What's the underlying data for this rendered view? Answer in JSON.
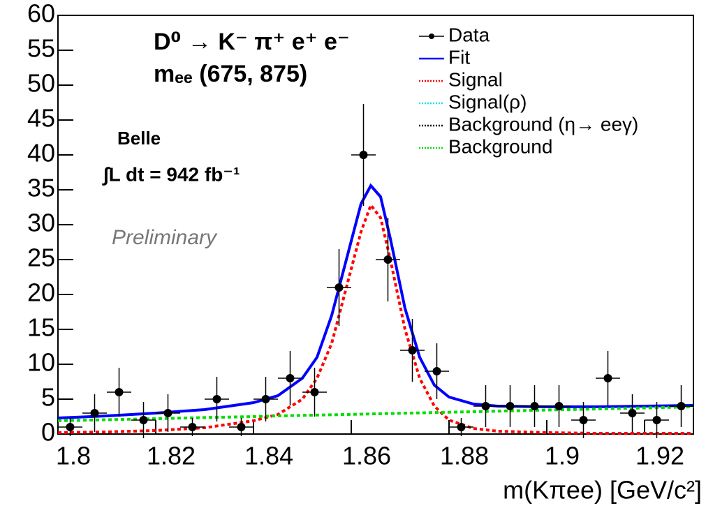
{
  "chart_data": {
    "type": "histfit",
    "xlabel": "m(Kπee) [GeV/c²]",
    "xlim": [
      1.8,
      1.93
    ],
    "ylim": [
      0,
      60
    ],
    "xticks": [
      1.8,
      1.82,
      1.84,
      1.86,
      1.88,
      1.9,
      1.92
    ],
    "yticks": [
      0,
      5,
      10,
      15,
      20,
      25,
      30,
      35,
      40,
      45,
      50,
      55,
      60
    ],
    "annotations": [
      "D⁰ → K⁻ π⁺ e⁺ e⁻",
      "mₑₑ (675, 875)",
      "Belle",
      "∫L dt = 942 fb⁻¹",
      "Preliminary"
    ],
    "data": {
      "x": [
        1.8025,
        1.8075,
        1.8125,
        1.8175,
        1.8225,
        1.8275,
        1.8325,
        1.8375,
        1.8425,
        1.8475,
        1.8525,
        1.8575,
        1.8625,
        1.8675,
        1.8725,
        1.8775,
        1.8825,
        1.8875,
        1.8925,
        1.8975,
        1.9025,
        1.9075,
        1.9125,
        1.9175,
        1.9225,
        1.9275
      ],
      "values": [
        1,
        3,
        6,
        2,
        3,
        1,
        5,
        1,
        5,
        8,
        6,
        21,
        40,
        25,
        12,
        9,
        1,
        4,
        4,
        4,
        4,
        2,
        8,
        3,
        2,
        4
      ],
      "yerr": [
        1.3,
        2.7,
        3.5,
        2.6,
        2.7,
        1.3,
        3.2,
        1.3,
        3.2,
        3.9,
        3.5,
        5.5,
        7.3,
        6,
        4.5,
        4,
        1.3,
        3,
        3,
        3,
        3,
        2.6,
        3.9,
        2.7,
        2.6,
        3
      ],
      "xerr": 0.0025
    },
    "curve_x": [
      1.8,
      1.81,
      1.82,
      1.83,
      1.84,
      1.845,
      1.85,
      1.853,
      1.856,
      1.859,
      1.862,
      1.864,
      1.866,
      1.868,
      1.871,
      1.874,
      1.877,
      1.88,
      1.885,
      1.89,
      1.9,
      1.91,
      1.92,
      1.93
    ],
    "series": [
      {
        "name": "Data",
        "color": "#000000"
      },
      {
        "name": "Fit",
        "color": "#0000ff",
        "style": "solid",
        "values": [
          2.3,
          2.6,
          3.0,
          3.5,
          4.5,
          5.5,
          8,
          11,
          17,
          25,
          33,
          35.6,
          34,
          28,
          18,
          11,
          7,
          5.3,
          4.3,
          4.0,
          3.9,
          3.9,
          4.0,
          4.1
        ]
      },
      {
        "name": "Signal",
        "color": "#ff0000",
        "style": "dotted",
        "values": [
          0.2,
          0.3,
          0.5,
          0.9,
          1.9,
          2.8,
          5,
          8,
          13,
          21,
          29,
          32.8,
          31,
          25,
          15,
          8,
          4,
          2,
          0.8,
          0.4,
          0.2,
          0.1,
          0.1,
          0.1
        ]
      },
      {
        "name": "Signal(ρ)",
        "color": "#00e5ee",
        "style": "dotted"
      },
      {
        "name": "Background (η→ eeγ)",
        "color": "#000000",
        "style": "dotted"
      },
      {
        "name": "Background",
        "color": "#00dd00",
        "style": "dotted",
        "values": [
          1.9,
          2.05,
          2.2,
          2.36,
          2.5,
          2.6,
          2.67,
          2.72,
          2.76,
          2.8,
          2.85,
          2.88,
          2.91,
          2.94,
          2.99,
          3.03,
          3.08,
          3.13,
          3.2,
          3.28,
          3.44,
          3.59,
          3.74,
          3.9
        ]
      }
    ]
  }
}
